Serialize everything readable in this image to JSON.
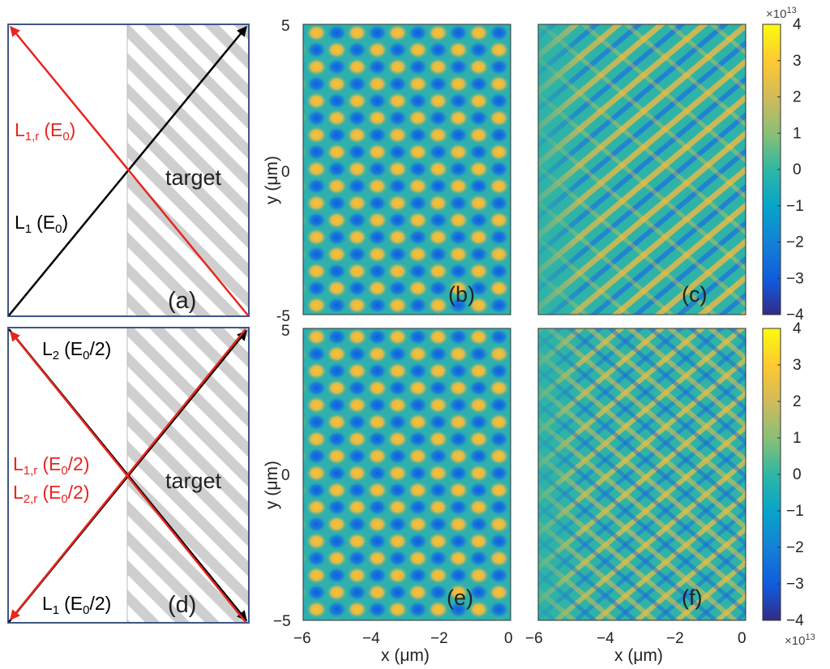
{
  "panels": {
    "a": {
      "tag": "(a)",
      "target": "target",
      "beams": [
        {
          "name": "L",
          "sub": "1",
          "arg": "(E",
          "argsub": "0",
          "argend": ")",
          "color": "#000000"
        },
        {
          "name": "L",
          "sub": "1,r",
          "arg": "(E",
          "argsub": "0",
          "argend": ")",
          "color": "#e8251f"
        }
      ]
    },
    "d": {
      "tag": "(d)",
      "target": "target",
      "beams": [
        {
          "name": "L",
          "sub": "2",
          "arg": "(E",
          "argsub": "0",
          "argend": "/2)",
          "color": "#000000"
        },
        {
          "name": "L",
          "sub": "1,r",
          "arg": "(E",
          "argsub": "0",
          "argend": "/2)",
          "color": "#e8251f"
        },
        {
          "name": "L",
          "sub": "2,r",
          "arg": "(E",
          "argsub": "0",
          "argend": "/2)",
          "color": "#e8251f"
        },
        {
          "name": "L",
          "sub": "1",
          "arg": "(E",
          "argsub": "0",
          "argend": "/2)",
          "color": "#000000"
        }
      ]
    },
    "field_tags": [
      "(b)",
      "(c)",
      "(e)",
      "(f)"
    ]
  },
  "axes": {
    "y_label": "y (μm)",
    "x_label": "x (μm)",
    "y_ticks": [
      "5",
      "0",
      "-5"
    ],
    "y_ticks_bottom": [
      "5",
      "0",
      "−5"
    ],
    "x_ticks": [
      "−6",
      "−4",
      "−2",
      "0"
    ],
    "x_ticks_right": [
      "−6",
      "−4",
      "−2",
      "0"
    ]
  },
  "colorbar": {
    "ticks": [
      "4",
      "3",
      "2",
      "1",
      "0",
      "−1",
      "−2",
      "−3",
      "−4"
    ],
    "exponent_base": "×10",
    "exponent": "13",
    "range": [
      -4,
      4
    ]
  },
  "colors": {
    "red_beam": "#e8251f",
    "black_beam": "#000000",
    "frame": "#3e5688",
    "hatch": "#cfcfcf"
  }
}
